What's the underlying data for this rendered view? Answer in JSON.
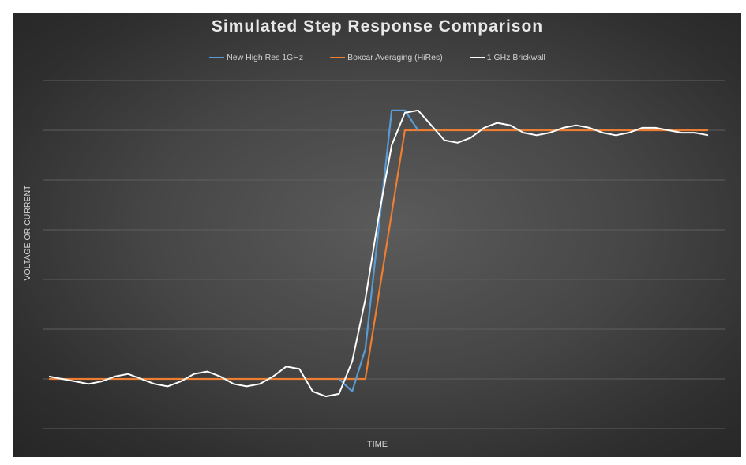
{
  "chart_data": {
    "type": "line",
    "title": "Simulated Step Response Comparison",
    "xlabel": "TIME",
    "ylabel": "VOLTAGE OR CURRENT",
    "grid": true,
    "legend_placement": "top",
    "ylim": [
      -0.2,
      1.3
    ],
    "xlim": [
      0,
      50
    ],
    "series": [
      {
        "name": "New High Res 1GHz",
        "color": "#5b9bd5",
        "x": [
          22,
          23,
          24,
          25,
          26,
          27,
          28
        ],
        "y": [
          0.0,
          -0.05,
          0.12,
          0.6,
          1.08,
          1.08,
          1.0
        ]
      },
      {
        "name": "Boxcar Averaging (HiRes)",
        "color": "#ed7d31",
        "x": [
          0,
          24,
          27,
          50
        ],
        "y": [
          0.0,
          0.0,
          1.0,
          1.0
        ]
      },
      {
        "name": "1 GHz Brickwall",
        "color": "#ffffff",
        "x": [
          0,
          1,
          2,
          3,
          4,
          5,
          6,
          7,
          8,
          9,
          10,
          11,
          12,
          13,
          14,
          15,
          16,
          17,
          18,
          19,
          20,
          21,
          22,
          23,
          24,
          25,
          26,
          27,
          28,
          29,
          30,
          31,
          32,
          33,
          34,
          35,
          36,
          37,
          38,
          39,
          40,
          41,
          42,
          43,
          44,
          45,
          46,
          47,
          48,
          49,
          50
        ],
        "y": [
          0.01,
          0.0,
          -0.01,
          -0.02,
          -0.01,
          0.01,
          0.02,
          0.0,
          -0.02,
          -0.03,
          -0.01,
          0.02,
          0.03,
          0.01,
          -0.02,
          -0.03,
          -0.02,
          0.01,
          0.05,
          0.04,
          -0.05,
          -0.07,
          -0.06,
          0.07,
          0.32,
          0.65,
          0.94,
          1.07,
          1.08,
          1.02,
          0.96,
          0.95,
          0.97,
          1.01,
          1.03,
          1.02,
          0.99,
          0.98,
          0.99,
          1.01,
          1.02,
          1.01,
          0.99,
          0.98,
          0.99,
          1.01,
          1.01,
          1.0,
          0.99,
          0.99,
          0.98
        ]
      }
    ]
  }
}
